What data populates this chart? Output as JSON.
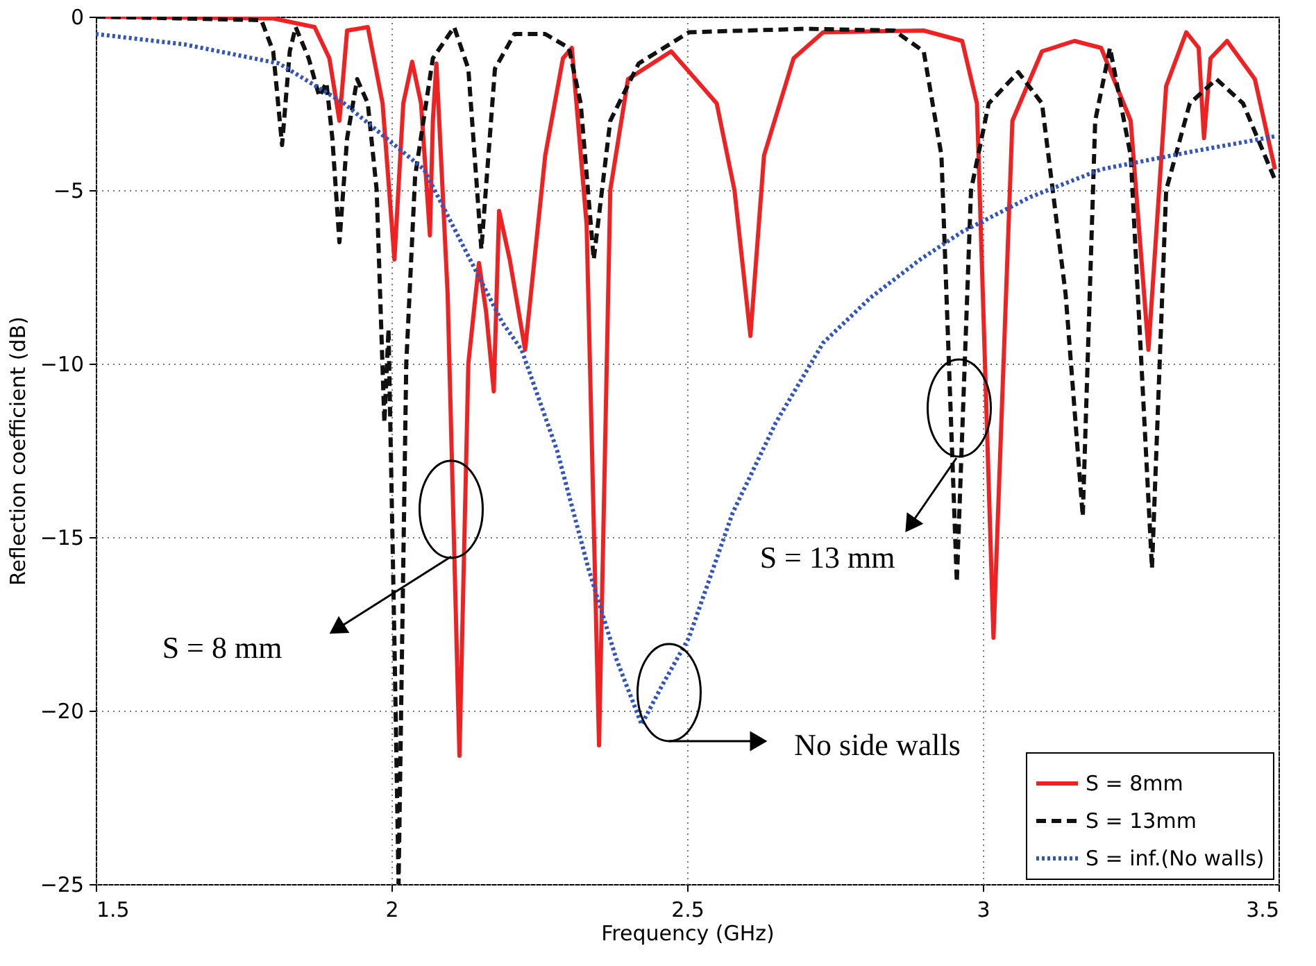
{
  "chart_data": {
    "type": "line",
    "xlabel": "Frequency (GHz)",
    "ylabel": "Reflection coefficient (dB)",
    "xlim": [
      1.5,
      3.5
    ],
    "xticks": [
      1.5,
      2,
      2.5,
      3,
      3.5
    ],
    "ylim": [
      -25,
      0
    ],
    "yticks": [
      -25,
      -20,
      -15,
      -10,
      -5,
      0
    ],
    "grid": true,
    "legend": "bottom right",
    "marker": "none",
    "series": [
      {
        "name": "S = 8mm",
        "color": "#ee2222",
        "line_style": "solid",
        "x": [
          1.5,
          1.8,
          1.87,
          1.895,
          1.912,
          1.925,
          1.96,
          1.985,
          2.005,
          2.02,
          2.035,
          2.05,
          2.065,
          2.07,
          2.076,
          2.095,
          2.115,
          2.13,
          2.148,
          2.16,
          2.173,
          2.182,
          2.2,
          2.226,
          2.26,
          2.29,
          2.305,
          2.33,
          2.351,
          2.37,
          2.4,
          2.473,
          2.55,
          2.58,
          2.607,
          2.63,
          2.68,
          2.73,
          2.9,
          2.965,
          2.99,
          3.018,
          3.05,
          3.1,
          3.155,
          3.2,
          3.25,
          3.28,
          3.31,
          3.344,
          3.365,
          3.374,
          3.385,
          3.413,
          3.46,
          3.494
        ],
        "values": [
          0,
          -0.05,
          -0.3,
          -1.2,
          -3.0,
          -0.4,
          -0.3,
          -2.5,
          -7.0,
          -2.5,
          -1.3,
          -2.5,
          -6.3,
          -3,
          -1.35,
          -8,
          -21.3,
          -10,
          -7.1,
          -8.5,
          -10.8,
          -5.6,
          -7,
          -9.6,
          -4,
          -1.2,
          -0.9,
          -6,
          -21.0,
          -5,
          -1.8,
          -1.0,
          -2.5,
          -5,
          -9.2,
          -4,
          -1.2,
          -0.45,
          -0.4,
          -0.7,
          -2.5,
          -17.9,
          -3,
          -1.0,
          -0.7,
          -0.9,
          -3,
          -9.6,
          -2,
          -0.45,
          -0.9,
          -3.5,
          -1.2,
          -0.7,
          -1.8,
          -4.4
        ]
      },
      {
        "name": "S = 13mm",
        "color": "#111111",
        "line_style": "dashed",
        "x": [
          1.5,
          1.78,
          1.8,
          1.815,
          1.828,
          1.838,
          1.86,
          1.878,
          1.89,
          1.9,
          1.912,
          1.925,
          1.942,
          1.96,
          1.975,
          1.988,
          1.995,
          2.005,
          2.012,
          2.025,
          2.04,
          2.07,
          2.106,
          2.13,
          2.152,
          2.175,
          2.208,
          2.26,
          2.3,
          2.32,
          2.342,
          2.37,
          2.418,
          2.503,
          2.7,
          2.85,
          2.9,
          2.93,
          2.956,
          2.98,
          3.01,
          3.06,
          3.1,
          3.14,
          3.169,
          3.19,
          3.215,
          3.25,
          3.286,
          3.31,
          3.35,
          3.395,
          3.44,
          3.494
        ],
        "values": [
          0,
          -0.1,
          -1,
          -3.7,
          -1,
          -0.3,
          -1.2,
          -2.3,
          -1.9,
          -3.5,
          -6.5,
          -3.5,
          -1.8,
          -2.5,
          -5,
          -11.7,
          -9,
          -18,
          -25,
          -10,
          -4.6,
          -1.2,
          -0.3,
          -1.5,
          -6.7,
          -1.5,
          -0.5,
          -0.5,
          -0.9,
          -2.5,
          -7.0,
          -3,
          -1.35,
          -0.45,
          -0.35,
          -0.4,
          -1.0,
          -4,
          -16.3,
          -5,
          -2.5,
          -1.6,
          -2.5,
          -8,
          -14.4,
          -3,
          -0.9,
          -4,
          -15.9,
          -5,
          -2.5,
          -1.8,
          -2.5,
          -4.7
        ]
      },
      {
        "name": "S = inf.(No walls)",
        "color": "#3355bb",
        "line_style": "dotted",
        "x": [
          1.5,
          1.65,
          1.81,
          1.92,
          2.055,
          2.187,
          2.22,
          2.28,
          2.333,
          2.38,
          2.423,
          2.46,
          2.503,
          2.577,
          2.65,
          2.73,
          2.81,
          2.894,
          2.965,
          3.08,
          3.2,
          3.35,
          3.494
        ],
        "values": [
          -0.5,
          -0.8,
          -1.35,
          -2.5,
          -4.4,
          -8.8,
          -9.6,
          -12.5,
          -15.9,
          -18.5,
          -20.4,
          -19.2,
          -17.9,
          -14.3,
          -11.7,
          -9.4,
          -8.1,
          -7.0,
          -6.2,
          -5.2,
          -4.4,
          -3.9,
          -3.45
        ]
      }
    ],
    "annotations": [
      "S = 8 mm",
      "S = 13 mm",
      "No side walls"
    ]
  }
}
